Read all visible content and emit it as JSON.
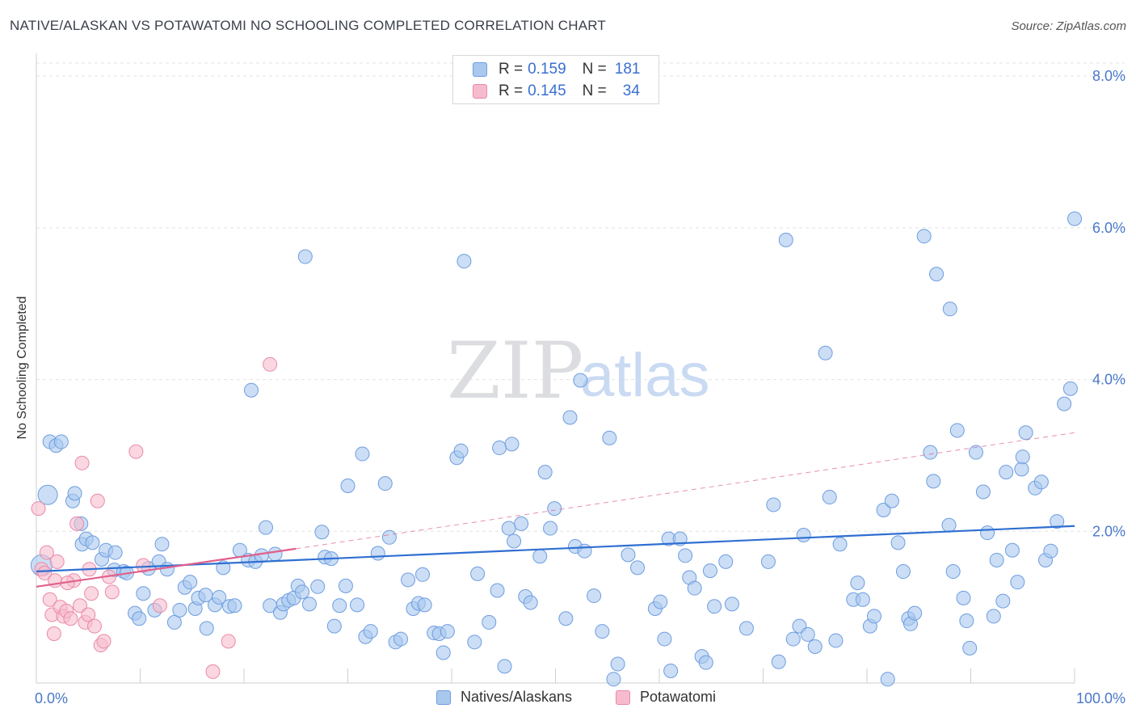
{
  "title": "NATIVE/ALASKAN VS POTAWATOMI NO SCHOOLING COMPLETED CORRELATION CHART",
  "source": "Source: ZipAtlas.com",
  "watermark": {
    "zip": "ZIP",
    "atlas": "atlas"
  },
  "legend": {
    "rows": [
      {
        "r_label": "R =",
        "r_value": "0.159",
        "n_label": "N =",
        "n_value": "181"
      },
      {
        "r_label": "R =",
        "r_value": "0.145",
        "n_label": "N =",
        "n_value": "34"
      }
    ]
  },
  "colors": {
    "blue_fill": "#a9c8ee",
    "blue_stroke": "#6e9de0",
    "blue_line": "#2f6fd1",
    "pink_fill": "#f6bccd",
    "pink_stroke": "#e98aa8",
    "pink_line": "#e0608c",
    "grid": "#e2e2e2",
    "axis_text": "#4a78c8"
  },
  "chart_data": {
    "type": "scatter",
    "ylabel": "No Schooling Completed",
    "xlim": [
      0,
      100
    ],
    "ylim": [
      0,
      8.3
    ],
    "x_tick_labels": [
      "0.0%",
      "100.0%"
    ],
    "y_ticks": [
      2,
      4,
      6,
      8
    ],
    "y_tick_labels": [
      "2.0%",
      "4.0%",
      "6.0%",
      "8.0%"
    ],
    "grid": true,
    "legend_position": "top-center",
    "series": [
      {
        "name": "Natives/Alaskans",
        "color": "#a9c8ee",
        "trend": {
          "x": [
            0,
            100
          ],
          "y": [
            1.47,
            2.07
          ]
        },
        "points": [
          [
            0.5,
            1.55
          ],
          [
            1.1,
            2.48
          ],
          [
            1.3,
            3.18
          ],
          [
            1.9,
            3.13
          ],
          [
            2.4,
            3.18
          ],
          [
            3.5,
            2.4
          ],
          [
            3.7,
            2.5
          ],
          [
            4.3,
            2.1
          ],
          [
            4.4,
            1.83
          ],
          [
            4.8,
            1.9
          ],
          [
            5.4,
            1.85
          ],
          [
            6.3,
            1.63
          ],
          [
            6.7,
            1.75
          ],
          [
            7.5,
            1.49
          ],
          [
            7.6,
            1.72
          ],
          [
            8.4,
            1.47
          ],
          [
            8.7,
            1.45
          ],
          [
            9.5,
            0.92
          ],
          [
            9.9,
            0.85
          ],
          [
            10.3,
            1.18
          ],
          [
            10.8,
            1.51
          ],
          [
            11.4,
            0.96
          ],
          [
            11.8,
            1.6
          ],
          [
            12.1,
            1.83
          ],
          [
            12.6,
            1.5
          ],
          [
            13.3,
            0.8
          ],
          [
            13.8,
            0.96
          ],
          [
            14.3,
            1.26
          ],
          [
            14.8,
            1.33
          ],
          [
            15.3,
            0.98
          ],
          [
            15.6,
            1.12
          ],
          [
            16.3,
            1.16
          ],
          [
            16.4,
            0.72
          ],
          [
            17.2,
            1.03
          ],
          [
            17.6,
            1.13
          ],
          [
            18.0,
            1.52
          ],
          [
            18.6,
            1.01
          ],
          [
            19.1,
            1.02
          ],
          [
            19.6,
            1.75
          ],
          [
            20.4,
            1.62
          ],
          [
            20.7,
            3.86
          ],
          [
            21.1,
            1.6
          ],
          [
            21.7,
            1.68
          ],
          [
            22.1,
            2.05
          ],
          [
            22.5,
            1.02
          ],
          [
            23.0,
            1.7
          ],
          [
            23.5,
            0.93
          ],
          [
            23.8,
            1.04
          ],
          [
            24.3,
            1.09
          ],
          [
            24.8,
            1.12
          ],
          [
            25.2,
            1.28
          ],
          [
            25.6,
            1.2
          ],
          [
            25.9,
            5.62
          ],
          [
            26.3,
            1.04
          ],
          [
            27.1,
            1.27
          ],
          [
            27.5,
            1.99
          ],
          [
            27.8,
            1.66
          ],
          [
            28.4,
            1.64
          ],
          [
            28.7,
            0.75
          ],
          [
            29.2,
            1.02
          ],
          [
            29.8,
            1.28
          ],
          [
            30.0,
            2.6
          ],
          [
            30.9,
            1.03
          ],
          [
            31.4,
            3.02
          ],
          [
            31.7,
            0.61
          ],
          [
            32.2,
            0.68
          ],
          [
            32.9,
            1.71
          ],
          [
            33.6,
            2.63
          ],
          [
            34.0,
            1.92
          ],
          [
            34.6,
            0.54
          ],
          [
            35.1,
            0.58
          ],
          [
            35.8,
            1.36
          ],
          [
            36.3,
            0.98
          ],
          [
            36.8,
            1.05
          ],
          [
            37.2,
            1.43
          ],
          [
            37.4,
            1.03
          ],
          [
            38.3,
            0.66
          ],
          [
            38.8,
            0.65
          ],
          [
            39.2,
            0.4
          ],
          [
            39.6,
            0.68
          ],
          [
            40.5,
            2.97
          ],
          [
            40.9,
            3.06
          ],
          [
            41.2,
            5.56
          ],
          [
            42.2,
            0.54
          ],
          [
            42.5,
            1.44
          ],
          [
            43.6,
            0.8
          ],
          [
            44.4,
            1.22
          ],
          [
            44.6,
            3.1
          ],
          [
            45.1,
            0.22
          ],
          [
            45.5,
            2.04
          ],
          [
            45.8,
            3.15
          ],
          [
            46.0,
            1.87
          ],
          [
            46.7,
            2.1
          ],
          [
            47.1,
            1.14
          ],
          [
            47.6,
            1.06
          ],
          [
            48.5,
            1.67
          ],
          [
            49.0,
            2.78
          ],
          [
            49.5,
            2.04
          ],
          [
            49.9,
            2.3
          ],
          [
            51.0,
            0.85
          ],
          [
            51.4,
            3.5
          ],
          [
            51.9,
            1.8
          ],
          [
            52.4,
            3.99
          ],
          [
            52.8,
            1.74
          ],
          [
            53.7,
            1.15
          ],
          [
            54.5,
            0.68
          ],
          [
            55.2,
            3.23
          ],
          [
            55.6,
            0.05
          ],
          [
            56.0,
            0.25
          ],
          [
            57.0,
            1.69
          ],
          [
            57.9,
            1.52
          ],
          [
            59.6,
            0.98
          ],
          [
            60.1,
            1.07
          ],
          [
            60.5,
            0.58
          ],
          [
            60.9,
            1.9
          ],
          [
            61.1,
            0.16
          ],
          [
            62.0,
            1.9
          ],
          [
            62.5,
            1.68
          ],
          [
            62.9,
            1.39
          ],
          [
            63.4,
            1.25
          ],
          [
            64.1,
            0.35
          ],
          [
            64.5,
            0.27
          ],
          [
            64.9,
            1.48
          ],
          [
            65.3,
            1.01
          ],
          [
            66.4,
            1.6
          ],
          [
            67.0,
            1.04
          ],
          [
            68.4,
            0.72
          ],
          [
            70.5,
            1.6
          ],
          [
            71.0,
            2.35
          ],
          [
            71.5,
            0.28
          ],
          [
            72.2,
            5.84
          ],
          [
            72.9,
            0.58
          ],
          [
            73.5,
            0.75
          ],
          [
            73.9,
            1.95
          ],
          [
            74.3,
            0.64
          ],
          [
            75.0,
            0.48
          ],
          [
            76.0,
            4.35
          ],
          [
            76.4,
            2.45
          ],
          [
            77.0,
            0.56
          ],
          [
            77.4,
            1.83
          ],
          [
            78.7,
            1.1
          ],
          [
            79.1,
            1.32
          ],
          [
            79.6,
            1.1
          ],
          [
            80.3,
            0.75
          ],
          [
            80.7,
            0.88
          ],
          [
            81.6,
            2.28
          ],
          [
            82.0,
            0.05
          ],
          [
            82.4,
            2.4
          ],
          [
            83.0,
            1.85
          ],
          [
            83.5,
            1.47
          ],
          [
            84.0,
            0.85
          ],
          [
            84.2,
            0.78
          ],
          [
            84.6,
            0.92
          ],
          [
            85.5,
            5.89
          ],
          [
            86.1,
            3.04
          ],
          [
            86.4,
            2.66
          ],
          [
            86.7,
            5.39
          ],
          [
            87.9,
            2.08
          ],
          [
            88.0,
            4.93
          ],
          [
            88.3,
            1.47
          ],
          [
            88.7,
            3.33
          ],
          [
            89.3,
            1.12
          ],
          [
            89.6,
            0.82
          ],
          [
            89.9,
            0.46
          ],
          [
            90.5,
            3.04
          ],
          [
            91.2,
            2.52
          ],
          [
            91.6,
            1.98
          ],
          [
            92.2,
            0.88
          ],
          [
            92.5,
            1.62
          ],
          [
            93.1,
            1.08
          ],
          [
            93.4,
            2.78
          ],
          [
            94.0,
            1.75
          ],
          [
            94.5,
            1.33
          ],
          [
            94.9,
            2.82
          ],
          [
            95.0,
            2.98
          ],
          [
            95.3,
            3.3
          ],
          [
            96.2,
            2.57
          ],
          [
            96.8,
            2.65
          ],
          [
            97.2,
            1.62
          ],
          [
            97.7,
            1.74
          ],
          [
            98.3,
            2.13
          ],
          [
            99.0,
            3.68
          ],
          [
            99.6,
            3.88
          ],
          [
            100.0,
            6.12
          ]
        ]
      },
      {
        "name": "Potawatomi",
        "color": "#f6bccd",
        "trend": {
          "x": [
            0,
            25
          ],
          "y": [
            1.27,
            1.77
          ]
        },
        "trend_extension": {
          "x": [
            25,
            100
          ],
          "y": [
            1.77,
            3.3
          ]
        },
        "points": [
          [
            0.2,
            2.3
          ],
          [
            0.5,
            1.5
          ],
          [
            0.8,
            1.45
          ],
          [
            1.0,
            1.72
          ],
          [
            1.3,
            1.1
          ],
          [
            1.5,
            0.9
          ],
          [
            1.8,
            1.35
          ],
          [
            2.0,
            1.6
          ],
          [
            2.3,
            1.0
          ],
          [
            2.6,
            0.88
          ],
          [
            2.9,
            0.95
          ],
          [
            3.3,
            0.85
          ],
          [
            3.6,
            1.35
          ],
          [
            3.9,
            2.1
          ],
          [
            4.2,
            1.02
          ],
          [
            4.4,
            2.9
          ],
          [
            4.7,
            0.8
          ],
          [
            5.0,
            0.9
          ],
          [
            5.3,
            1.18
          ],
          [
            5.6,
            0.75
          ],
          [
            5.9,
            2.4
          ],
          [
            6.2,
            0.5
          ],
          [
            6.5,
            0.55
          ],
          [
            7.0,
            1.4
          ],
          [
            7.3,
            1.2
          ],
          [
            9.6,
            3.05
          ],
          [
            10.3,
            1.55
          ],
          [
            11.9,
            1.02
          ],
          [
            17.0,
            0.15
          ],
          [
            18.5,
            0.55
          ],
          [
            22.5,
            4.2
          ],
          [
            5.1,
            1.5
          ],
          [
            3.0,
            1.32
          ],
          [
            1.7,
            0.65
          ]
        ]
      }
    ]
  }
}
